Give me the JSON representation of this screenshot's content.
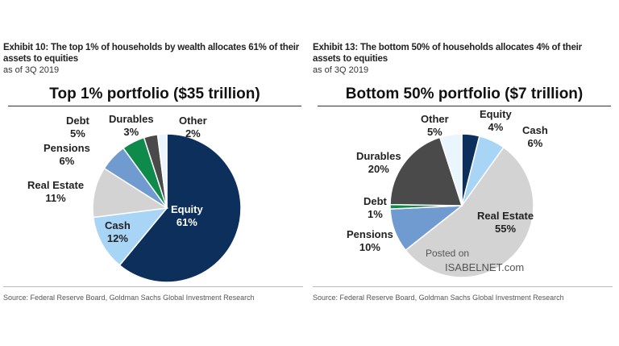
{
  "chart_data": [
    {
      "type": "pie",
      "exhibit": "Exhibit 10: The top 1% of households by wealth allocates 61% of their assets to equities",
      "subtitle": "as of 3Q 2019",
      "title": "Top 1% portfolio ($35 trillion)",
      "source": "Source: Federal Reserve Board, Goldman Sachs Global Investment Research",
      "slices": [
        {
          "label": "Equity",
          "value": 61,
          "text": "61%",
          "color": "#0d2f5c"
        },
        {
          "label": "Cash",
          "value": 12,
          "text": "12%",
          "color": "#a8d4f5"
        },
        {
          "label": "Real Estate",
          "value": 11,
          "text": "11%",
          "color": "#d3d3d3"
        },
        {
          "label": "Pensions",
          "value": 6,
          "text": "6%",
          "color": "#6f9bd1"
        },
        {
          "label": "Debt",
          "value": 5,
          "text": "5%",
          "color": "#0e8a4a"
        },
        {
          "label": "Durables",
          "value": 3,
          "text": "3%",
          "color": "#4a4a4a"
        },
        {
          "label": "Other",
          "value": 2,
          "text": "2%",
          "color": "#eaf6fd"
        }
      ]
    },
    {
      "type": "pie",
      "exhibit": "Exhibit 13: The bottom 50% of households allocates 4% of their assets to equities",
      "subtitle": "as of 3Q 2019",
      "title": "Bottom 50% portfolio ($7 trillion)",
      "source": "Source: Federal Reserve Board, Goldman Sachs Global Investment Research",
      "slices": [
        {
          "label": "Equity",
          "value": 4,
          "text": "4%",
          "color": "#0d2f5c"
        },
        {
          "label": "Cash",
          "value": 6,
          "text": "6%",
          "color": "#a8d4f5"
        },
        {
          "label": "Real Estate",
          "value": 55,
          "text": "55%",
          "color": "#d3d3d3"
        },
        {
          "label": "Pensions",
          "value": 10,
          "text": "10%",
          "color": "#6f9bd1"
        },
        {
          "label": "Debt",
          "value": 1,
          "text": "1%",
          "color": "#0e8a4a"
        },
        {
          "label": "Durables",
          "value": 20,
          "text": "20%",
          "color": "#4a4a4a"
        },
        {
          "label": "Other",
          "value": 5,
          "text": "5%",
          "color": "#eaf6fd"
        }
      ]
    }
  ],
  "watermark": {
    "line1": "Posted on",
    "line2": "ISABELNET.com"
  }
}
